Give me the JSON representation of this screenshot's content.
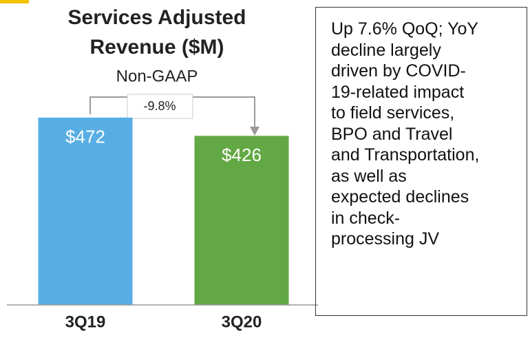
{
  "chart_data": {
    "type": "bar",
    "title": [
      "Services Adjusted",
      "Revenue ($M)"
    ],
    "subtitle": "Non-GAAP",
    "categories": [
      "3Q19",
      "3Q20"
    ],
    "values": [
      472,
      426
    ],
    "value_labels": [
      "$472",
      "$426"
    ],
    "colors": [
      "#58aee4",
      "#62a844"
    ],
    "ylim": [
      0,
      600
    ],
    "change_label": "-9.8%",
    "note_lines": [
      "Up 7.6% QoQ; YoY",
      "decline largely",
      "driven by COVID-",
      "19-related impact",
      "to field services,",
      "BPO and Travel",
      "and Transportation,",
      "as well as",
      "expected declines",
      "in check-",
      "processing JV"
    ]
  }
}
